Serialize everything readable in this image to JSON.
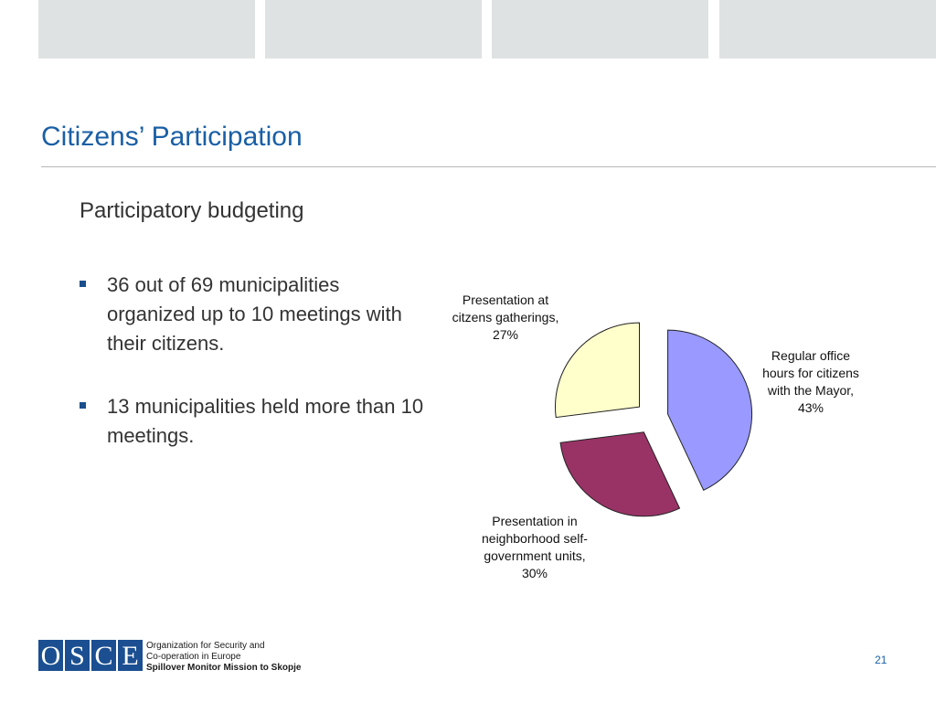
{
  "slide": {
    "title": "Citizens’ Participation",
    "subtitle": "Participatory budgeting",
    "bullets": [
      "36 out of 69 municipalities organized up to 10 meetings with their citizens.",
      "13 municipalities held more than 10 meetings."
    ],
    "page_number": "21"
  },
  "footer": {
    "logo_letters": [
      "O",
      "S",
      "C",
      "E"
    ],
    "org_lines": [
      "Organization for Security and",
      "Co-operation in Europe",
      "Spillover Monitor Mission to Skopje"
    ]
  },
  "colors": {
    "title": "#1a5fa5",
    "top_tabs": "#dfe2e2",
    "logo": "#1b4f91",
    "bullet_marker": "#1a4f8b"
  },
  "chart_data": {
    "type": "pie",
    "exploded": true,
    "slices": [
      {
        "label_lines": [
          "Regular office",
          "hours for citizens",
          "with the Mayor,",
          "43%"
        ],
        "value": 43,
        "color": "#9999ff"
      },
      {
        "label_lines": [
          "Presentation in",
          "neighborhood self-",
          "government units,",
          "30%"
        ],
        "value": 30,
        "color": "#993366"
      },
      {
        "label_lines": [
          "Presentation at",
          "citzens gatherings,",
          "27%"
        ],
        "value": 27,
        "color": "#ffffcc"
      }
    ]
  }
}
